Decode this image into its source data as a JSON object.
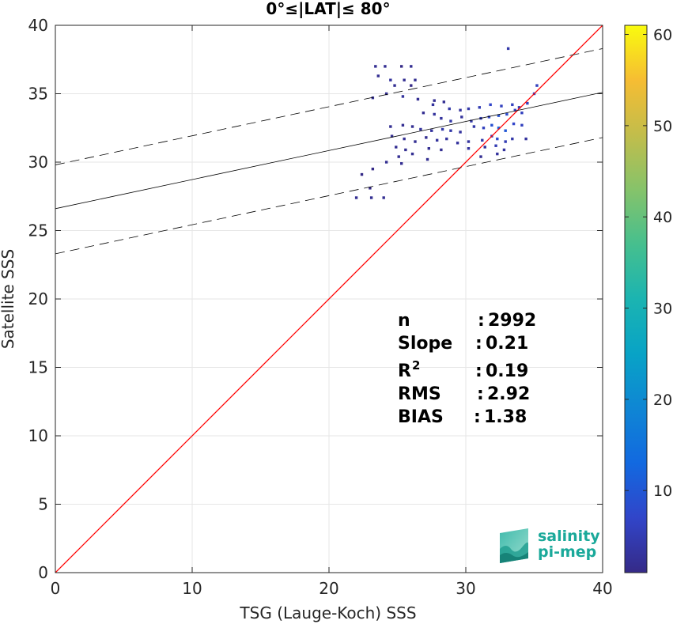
{
  "chart_data": {
    "type": "heatmap",
    "title": "0°≤|LAT|≤ 80°",
    "xlabel": "TSG (Lauge-Koch) SSS",
    "ylabel": "Satellite SSS",
    "xlim": [
      0,
      40
    ],
    "ylim": [
      0,
      40
    ],
    "xticks": [
      0,
      10,
      20,
      30,
      40
    ],
    "yticks": [
      0,
      5,
      10,
      15,
      20,
      25,
      30,
      35,
      40
    ],
    "grid": true,
    "colorbar": {
      "range": [
        1,
        61
      ],
      "ticks": [
        10,
        20,
        30,
        40,
        50,
        60
      ],
      "colormap": "parula"
    },
    "lines": [
      {
        "name": "identity",
        "kind": "solid",
        "color": "#ff0000",
        "points": [
          [
            0,
            0
          ],
          [
            40,
            40
          ]
        ]
      },
      {
        "name": "regression",
        "kind": "solid",
        "color": "#000000",
        "points": [
          [
            0,
            26.6
          ],
          [
            40,
            35.1
          ]
        ]
      },
      {
        "name": "regression-upper",
        "kind": "dashed",
        "color": "#000000",
        "points": [
          [
            0,
            29.8
          ],
          [
            40,
            38.3
          ]
        ]
      },
      {
        "name": "regression-lower",
        "kind": "dashed",
        "color": "#000000",
        "points": [
          [
            0,
            23.3
          ],
          [
            40,
            31.8
          ]
        ]
      }
    ],
    "density_cells": [
      [
        23.4,
        37.0,
        2
      ],
      [
        24.1,
        37.0,
        2
      ],
      [
        25.3,
        37.0,
        1
      ],
      [
        26.0,
        37.0,
        2
      ],
      [
        23.6,
        36.3,
        2
      ],
      [
        24.5,
        36.0,
        3
      ],
      [
        25.5,
        36.0,
        2
      ],
      [
        26.3,
        36.0,
        2
      ],
      [
        24.8,
        35.6,
        2
      ],
      [
        26.0,
        35.6,
        1
      ],
      [
        23.2,
        34.7,
        2
      ],
      [
        24.2,
        35.0,
        2
      ],
      [
        25.4,
        34.8,
        3
      ],
      [
        26.5,
        34.6,
        2
      ],
      [
        27.7,
        34.5,
        2
      ],
      [
        28.4,
        34.4,
        2
      ],
      [
        27.6,
        34.2,
        3
      ],
      [
        28.8,
        33.9,
        4
      ],
      [
        29.6,
        33.8,
        3
      ],
      [
        30.2,
        33.9,
        4
      ],
      [
        31.0,
        34.0,
        5
      ],
      [
        31.8,
        34.2,
        7
      ],
      [
        32.6,
        34.1,
        6
      ],
      [
        33.4,
        34.2,
        6
      ],
      [
        33.9,
        34.0,
        5
      ],
      [
        34.5,
        34.3,
        6
      ],
      [
        35.0,
        35.0,
        8
      ],
      [
        35.2,
        35.6,
        6
      ],
      [
        33.1,
        38.3,
        4
      ],
      [
        26.9,
        33.6,
        2
      ],
      [
        27.7,
        33.5,
        3
      ],
      [
        28.2,
        33.2,
        3
      ],
      [
        28.9,
        33.0,
        4
      ],
      [
        29.7,
        33.3,
        3
      ],
      [
        30.4,
        33.0,
        4
      ],
      [
        31.1,
        33.2,
        5
      ],
      [
        31.7,
        33.3,
        7
      ],
      [
        32.4,
        33.4,
        9
      ],
      [
        33.0,
        33.5,
        8
      ],
      [
        33.6,
        33.8,
        7
      ],
      [
        34.1,
        33.6,
        6
      ],
      [
        24.5,
        32.6,
        2
      ],
      [
        25.4,
        32.7,
        2
      ],
      [
        26.1,
        32.6,
        2
      ],
      [
        26.7,
        32.4,
        3
      ],
      [
        27.5,
        32.3,
        3
      ],
      [
        28.3,
        32.4,
        4
      ],
      [
        28.9,
        32.3,
        4
      ],
      [
        29.6,
        32.2,
        3
      ],
      [
        30.6,
        32.6,
        4
      ],
      [
        31.3,
        32.5,
        6
      ],
      [
        31.9,
        32.7,
        9
      ],
      [
        32.4,
        32.5,
        12
      ],
      [
        32.9,
        32.3,
        10
      ],
      [
        33.5,
        32.8,
        7
      ],
      [
        34.1,
        32.7,
        6
      ],
      [
        24.6,
        31.9,
        2
      ],
      [
        25.5,
        31.7,
        2
      ],
      [
        26.3,
        31.5,
        2
      ],
      [
        27.1,
        31.8,
        2
      ],
      [
        27.9,
        31.6,
        3
      ],
      [
        28.6,
        31.7,
        3
      ],
      [
        29.4,
        31.4,
        3
      ],
      [
        30.2,
        31.5,
        3
      ],
      [
        31.2,
        31.6,
        4
      ],
      [
        31.9,
        31.9,
        6
      ],
      [
        32.3,
        31.7,
        8
      ],
      [
        32.9,
        31.5,
        5
      ],
      [
        33.4,
        31.7,
        4
      ],
      [
        34.4,
        31.7,
        3
      ],
      [
        24.9,
        31.1,
        2
      ],
      [
        25.6,
        30.9,
        2
      ],
      [
        27.3,
        31.0,
        2
      ],
      [
        28.2,
        30.9,
        2
      ],
      [
        30.2,
        31.0,
        3
      ],
      [
        31.4,
        31.1,
        3
      ],
      [
        32.2,
        31.2,
        5
      ],
      [
        32.8,
        30.9,
        3
      ],
      [
        25.1,
        30.4,
        2
      ],
      [
        26.1,
        30.6,
        2
      ],
      [
        27.2,
        30.2,
        2
      ],
      [
        31.1,
        30.4,
        2
      ],
      [
        32.3,
        30.6,
        3
      ],
      [
        24.2,
        30.0,
        2
      ],
      [
        25.3,
        29.9,
        2
      ],
      [
        22.0,
        27.4,
        2
      ],
      [
        23.1,
        27.4,
        2
      ],
      [
        24.0,
        27.4,
        2
      ],
      [
        22.4,
        29.1,
        1
      ],
      [
        23.2,
        29.5,
        1
      ],
      [
        23.0,
        28.1,
        1
      ]
    ],
    "stats": [
      {
        "label": "n",
        "sep": ":",
        "value": "2992"
      },
      {
        "label": "Slope",
        "sep": ":",
        "value": "0.21"
      },
      {
        "label": "R",
        "sup": "2",
        "sep": ":",
        "value": "0.19"
      },
      {
        "label": "RMS",
        "sep": ":",
        "value": "2.92"
      },
      {
        "label": "BIAS",
        "sep": ":",
        "value": "1.38"
      }
    ]
  },
  "logo": {
    "line1": "salinity",
    "line2": "pi-mep"
  },
  "colors": {
    "identity": "#ff0000",
    "regression": "#000000",
    "grid": "#e6e6e6",
    "axis": "#262626",
    "logo_text": "#1aa99a"
  }
}
